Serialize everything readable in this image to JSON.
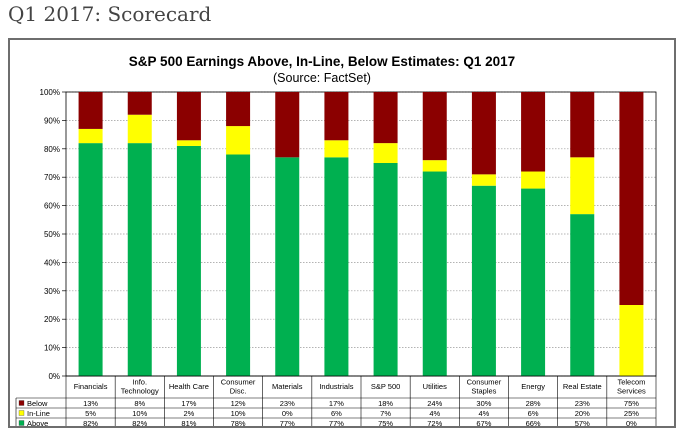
{
  "page": {
    "heading": "Q1 2017: Scorecard"
  },
  "chart_data": {
    "type": "bar",
    "stacked": true,
    "percent": true,
    "title": "S&P 500 Earnings Above, In-Line, Below Estimates: Q1 2017",
    "subtitle": "(Source: FactSet)",
    "ylim": [
      0,
      100
    ],
    "yticks": [
      "0%",
      "10%",
      "20%",
      "30%",
      "40%",
      "50%",
      "60%",
      "70%",
      "80%",
      "90%",
      "100%"
    ],
    "grid": true,
    "legend": "data-table-left",
    "categories": [
      [
        "Financials"
      ],
      [
        "Info.",
        "Technology"
      ],
      [
        "Health Care"
      ],
      [
        "Consumer",
        "Disc."
      ],
      [
        "Materials"
      ],
      [
        "Industrials"
      ],
      [
        "S&P 500"
      ],
      [
        "Utilities"
      ],
      [
        "Consumer",
        "Staples"
      ],
      [
        "Energy"
      ],
      [
        "Real Estate"
      ],
      [
        "Telecom",
        "Services"
      ]
    ],
    "series": [
      {
        "name": "Below",
        "color": "#8b0000",
        "values": [
          13,
          8,
          17,
          12,
          23,
          17,
          18,
          24,
          30,
          28,
          23,
          75
        ],
        "labels": [
          "13%",
          "8%",
          "17%",
          "12%",
          "23%",
          "17%",
          "18%",
          "24%",
          "30%",
          "28%",
          "23%",
          "75%"
        ]
      },
      {
        "name": "In-Line",
        "color": "#ffff00",
        "values": [
          5,
          10,
          2,
          10,
          0,
          6,
          7,
          4,
          4,
          6,
          20,
          25
        ],
        "labels": [
          "5%",
          "10%",
          "2%",
          "10%",
          "0%",
          "6%",
          "7%",
          "4%",
          "4%",
          "6%",
          "20%",
          "25%"
        ]
      },
      {
        "name": "Above",
        "color": "#00b050",
        "values": [
          82,
          82,
          81,
          78,
          77,
          77,
          75,
          72,
          67,
          66,
          57,
          0
        ],
        "labels": [
          "82%",
          "82%",
          "81%",
          "78%",
          "77%",
          "77%",
          "75%",
          "72%",
          "67%",
          "66%",
          "57%",
          "0%"
        ]
      }
    ]
  }
}
